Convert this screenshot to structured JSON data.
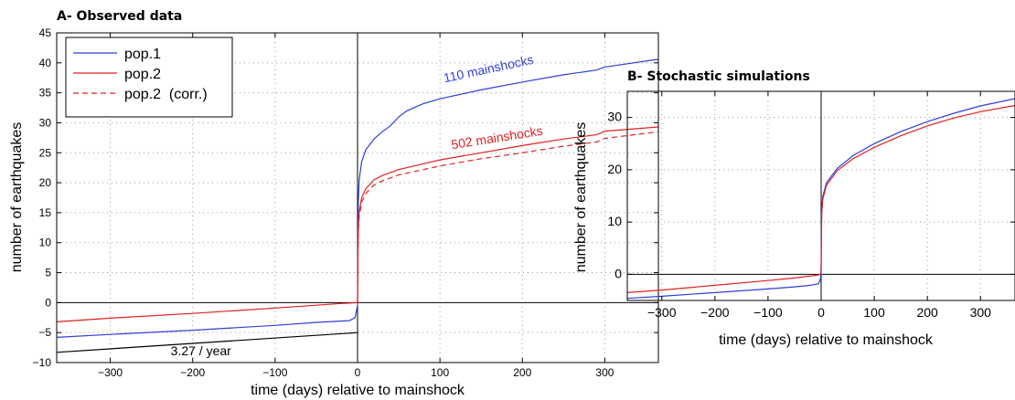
{
  "chart_data": [
    {
      "type": "line",
      "title": "A- Observed data",
      "xlabel": "time (days) relative to mainshock",
      "ylabel": "number of earthquakes",
      "xlim": [
        -365,
        365
      ],
      "ylim": [
        -10,
        45
      ],
      "xticks": [
        -300,
        -200,
        -100,
        0,
        100,
        200,
        300
      ],
      "yticks": [
        -10,
        -5,
        0,
        5,
        10,
        15,
        20,
        25,
        30,
        35,
        40,
        45
      ],
      "grid": true,
      "legend_position": "top-left",
      "series": [
        {
          "name": "pop.1",
          "color": "#2f3fd6",
          "style": "solid",
          "points": [
            [
              -365,
              -5.8
            ],
            [
              -300,
              -5.3
            ],
            [
              -200,
              -4.6
            ],
            [
              -100,
              -3.8
            ],
            [
              -50,
              -3.3
            ],
            [
              -10,
              -3.0
            ],
            [
              -3,
              -2.5
            ],
            [
              0,
              -0.5
            ],
            [
              0.5,
              12
            ],
            [
              1,
              17
            ],
            [
              2,
              20.5
            ],
            [
              5,
              23.5
            ],
            [
              10,
              25.5
            ],
            [
              20,
              27.3
            ],
            [
              30,
              28.5
            ],
            [
              40,
              29.5
            ],
            [
              50,
              31
            ],
            [
              60,
              32
            ],
            [
              80,
              33.2
            ],
            [
              100,
              34
            ],
            [
              150,
              35.5
            ],
            [
              200,
              36.8
            ],
            [
              250,
              38
            ],
            [
              290,
              38.8
            ],
            [
              300,
              39.3
            ],
            [
              365,
              40.6
            ]
          ]
        },
        {
          "name": "pop.2",
          "color": "#e02020",
          "style": "solid",
          "points": [
            [
              -365,
              -3.2
            ],
            [
              -300,
              -2.6
            ],
            [
              -200,
              -1.8
            ],
            [
              -100,
              -0.9
            ],
            [
              -20,
              -0.15
            ],
            [
              0,
              0
            ],
            [
              0.5,
              9
            ],
            [
              1,
              12.5
            ],
            [
              2,
              15
            ],
            [
              5,
              17.5
            ],
            [
              10,
              19
            ],
            [
              20,
              20.5
            ],
            [
              30,
              21.2
            ],
            [
              50,
              22.2
            ],
            [
              100,
              23.8
            ],
            [
              150,
              25
            ],
            [
              200,
              26.2
            ],
            [
              250,
              27.3
            ],
            [
              290,
              28
            ],
            [
              300,
              28.6
            ],
            [
              365,
              29.3
            ]
          ]
        },
        {
          "name": "pop.2  (corr.)",
          "color": "#e02020",
          "style": "dashed",
          "points": [
            [
              0,
              0
            ],
            [
              0.5,
              8.5
            ],
            [
              1,
              12
            ],
            [
              2,
              14.3
            ],
            [
              5,
              16.8
            ],
            [
              10,
              18.2
            ],
            [
              20,
              19.6
            ],
            [
              30,
              20.3
            ],
            [
              50,
              21.3
            ],
            [
              100,
              22.8
            ],
            [
              150,
              24
            ],
            [
              200,
              25
            ],
            [
              250,
              26.1
            ],
            [
              290,
              26.8
            ],
            [
              300,
              27.4
            ],
            [
              365,
              28.5
            ]
          ]
        },
        {
          "name": "",
          "color": "#000000",
          "style": "solid",
          "points": [
            [
              -365,
              -8.3
            ],
            [
              0,
              -5.0
            ]
          ]
        }
      ],
      "annotations": [
        {
          "text": "110 mainshocks",
          "color": "#2f3fd6",
          "x": 160,
          "y": 38.3,
          "angle": -12
        },
        {
          "text": "502 mainshocks",
          "color": "#e02020",
          "x": 170,
          "y": 26.8,
          "angle": -9
        },
        {
          "text": "3.27 / year",
          "color": "#000000",
          "x": -190,
          "y": -8.8,
          "angle": 0
        }
      ]
    },
    {
      "type": "line",
      "title": "B- Stochastic simulations",
      "xlabel": "time (days) relative to mainshock",
      "ylabel": "number of earthquakes",
      "xlim": [
        -365,
        365
      ],
      "ylim": [
        -5,
        35
      ],
      "xticks": [
        -300,
        -200,
        -100,
        0,
        100,
        200,
        300
      ],
      "yticks": [
        0,
        10,
        20,
        30
      ],
      "grid": true,
      "series": [
        {
          "name": "",
          "color": "#2f3fd6",
          "style": "solid",
          "points": [
            [
              -365,
              -4.6
            ],
            [
              -300,
              -4.2
            ],
            [
              -200,
              -3.5
            ],
            [
              -100,
              -2.8
            ],
            [
              -50,
              -2.4
            ],
            [
              -20,
              -2.1
            ],
            [
              -5,
              -1.8
            ],
            [
              -1,
              -0.8
            ],
            [
              0,
              2
            ],
            [
              1,
              12
            ],
            [
              3,
              14.8
            ],
            [
              10,
              17.5
            ],
            [
              30,
              20.2
            ],
            [
              60,
              22.7
            ],
            [
              100,
              25
            ],
            [
              150,
              27.3
            ],
            [
              200,
              29.2
            ],
            [
              250,
              30.8
            ],
            [
              300,
              32.2
            ],
            [
              365,
              33.6
            ]
          ]
        },
        {
          "name": "",
          "color": "#e02020",
          "style": "solid",
          "points": [
            [
              -365,
              -3.5
            ],
            [
              -300,
              -3.0
            ],
            [
              -200,
              -2.1
            ],
            [
              -100,
              -1.2
            ],
            [
              -50,
              -0.7
            ],
            [
              -10,
              -0.2
            ],
            [
              0,
              0
            ],
            [
              1,
              11.5
            ],
            [
              3,
              14.3
            ],
            [
              10,
              17
            ],
            [
              30,
              19.8
            ],
            [
              60,
              22.1
            ],
            [
              100,
              24.3
            ],
            [
              150,
              26.5
            ],
            [
              200,
              28.4
            ],
            [
              250,
              29.9
            ],
            [
              300,
              31.1
            ],
            [
              365,
              32.3
            ]
          ]
        }
      ]
    }
  ]
}
